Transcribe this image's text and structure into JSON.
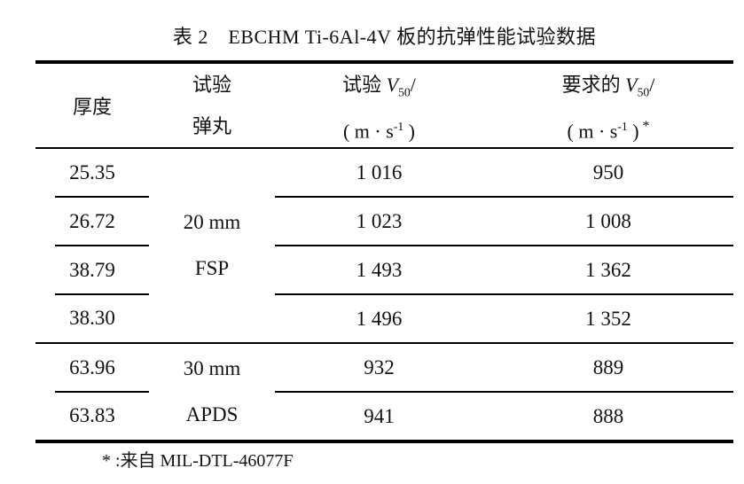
{
  "title": "表 2　EBCHM Ti-6Al-4V 板的抗弹性能试验数据",
  "table": {
    "col_thickness": {
      "label": "厚度"
    },
    "col_projectile": {
      "line1": "试验",
      "line2": "弹丸"
    },
    "col_test_v50": {
      "line1_prefix": "试验 ",
      "symbol": "V",
      "subscript": "50",
      "slash": "/",
      "line2_open": "( m · s",
      "line2_sup": "-1",
      "line2_close": " )"
    },
    "col_required_v50": {
      "line1_prefix": "要求的 ",
      "symbol": "V",
      "subscript": "50",
      "slash": "/",
      "line2_open": "( m · s",
      "line2_sup": "-1",
      "line2_close": " )",
      "line2_star": "*"
    },
    "groups": [
      {
        "projectile": [
          "20 mm",
          "FSP"
        ],
        "rows": [
          {
            "thickness": "25.35",
            "test_v50": "1 016",
            "required_v50": "950"
          },
          {
            "thickness": "26.72",
            "test_v50": "1 023",
            "required_v50": "1 008"
          },
          {
            "thickness": "38.79",
            "test_v50": "1 493",
            "required_v50": "1 362"
          },
          {
            "thickness": "38.30",
            "test_v50": "1 496",
            "required_v50": "1 352"
          }
        ]
      },
      {
        "projectile": [
          "30 mm",
          "APDS"
        ],
        "rows": [
          {
            "thickness": "63.96",
            "test_v50": "932",
            "required_v50": "889"
          },
          {
            "thickness": "63.83",
            "test_v50": "941",
            "required_v50": "888"
          }
        ]
      }
    ]
  },
  "footnote": "* :来自 MIL-DTL-46077F",
  "colors": {
    "text": "#111111",
    "rule": "#000000",
    "background": "#ffffff"
  }
}
